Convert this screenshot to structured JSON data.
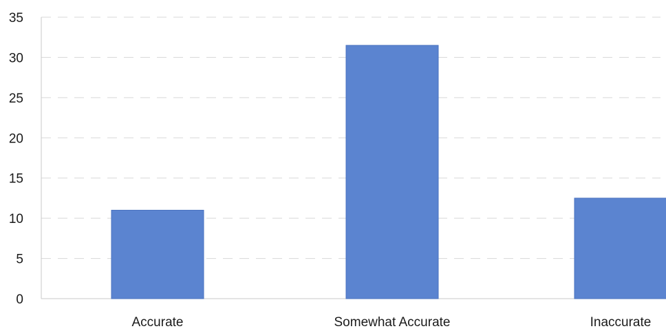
{
  "chart_data": {
    "type": "bar",
    "title": "",
    "xlabel": "",
    "ylabel": "",
    "categories": [
      "Accurate",
      "Somewhat Accurate",
      "Inaccurate"
    ],
    "values": [
      11,
      31.5,
      12.5
    ],
    "ylim": [
      0,
      35
    ],
    "yticks": [
      0,
      5,
      10,
      15,
      20,
      25,
      30,
      35
    ],
    "grid": true,
    "legend": "none",
    "colors": {
      "bar": "#5b84d0",
      "bar_edge": "#4a72bf",
      "grid": "#d8d8d8",
      "text": "#1a1a1a"
    }
  }
}
